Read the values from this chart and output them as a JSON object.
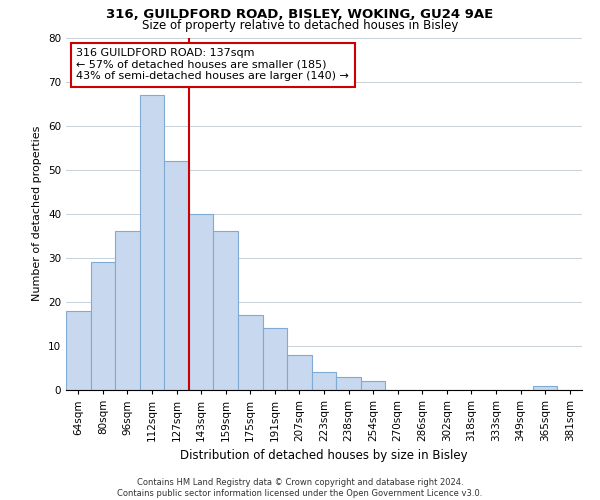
{
  "title1": "316, GUILDFORD ROAD, BISLEY, WOKING, GU24 9AE",
  "title2": "Size of property relative to detached houses in Bisley",
  "xlabel": "Distribution of detached houses by size in Bisley",
  "ylabel": "Number of detached properties",
  "bar_labels": [
    "64sqm",
    "80sqm",
    "96sqm",
    "112sqm",
    "127sqm",
    "143sqm",
    "159sqm",
    "175sqm",
    "191sqm",
    "207sqm",
    "223sqm",
    "238sqm",
    "254sqm",
    "270sqm",
    "286sqm",
    "302sqm",
    "318sqm",
    "333sqm",
    "349sqm",
    "365sqm",
    "381sqm"
  ],
  "bar_heights": [
    18,
    29,
    36,
    67,
    52,
    40,
    36,
    17,
    14,
    8,
    4,
    3,
    2,
    0,
    0,
    0,
    0,
    0,
    0,
    1,
    0
  ],
  "bar_color": "#c8d9ef",
  "bar_edge_color": "#7faad4",
  "vline_color": "#cc0000",
  "annotation_title": "316 GUILDFORD ROAD: 137sqm",
  "annotation_line1": "← 57% of detached houses are smaller (185)",
  "annotation_line2": "43% of semi-detached houses are larger (140) →",
  "annotation_box_color": "#ffffff",
  "annotation_box_edge": "#cc0000",
  "ylim": [
    0,
    80
  ],
  "yticks": [
    0,
    10,
    20,
    30,
    40,
    50,
    60,
    70,
    80
  ],
  "footer1": "Contains HM Land Registry data © Crown copyright and database right 2024.",
  "footer2": "Contains public sector information licensed under the Open Government Licence v3.0.",
  "background_color": "#ffffff",
  "grid_color": "#c8d0d8",
  "title1_fontsize": 9.5,
  "title2_fontsize": 8.5,
  "xlabel_fontsize": 8.5,
  "ylabel_fontsize": 8.0,
  "tick_fontsize": 7.5,
  "annotation_fontsize": 8.0,
  "footer_fontsize": 6.0
}
